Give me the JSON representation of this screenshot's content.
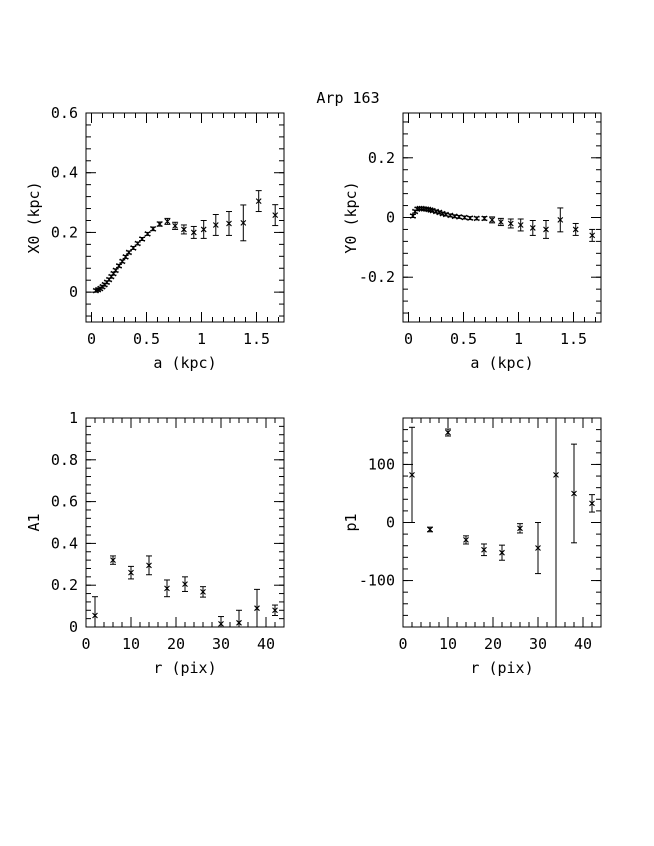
{
  "figure_title": "Arp 163",
  "chart_data": [
    {
      "type": "scatter",
      "panel": "top-left",
      "xlabel": "a (kpc)",
      "ylabel": "X0 (kpc)",
      "xlim": [
        -0.05,
        1.75
      ],
      "ylim": [
        -0.1,
        0.6
      ],
      "xticks": [
        0,
        0.5,
        1,
        1.5
      ],
      "xtick_labels": [
        "0",
        "0.5",
        "1",
        "1.5"
      ],
      "yticks": [
        0,
        0.2,
        0.4,
        0.6
      ],
      "ytick_labels": [
        "0",
        "0.2",
        "0.4",
        "0.6"
      ],
      "points": [
        {
          "x": 0.04,
          "y": 0.005,
          "err": 0.005
        },
        {
          "x": 0.06,
          "y": 0.008,
          "err": 0.005
        },
        {
          "x": 0.08,
          "y": 0.012,
          "err": 0.005
        },
        {
          "x": 0.1,
          "y": 0.018,
          "err": 0.005
        },
        {
          "x": 0.12,
          "y": 0.025,
          "err": 0.005
        },
        {
          "x": 0.14,
          "y": 0.033,
          "err": 0.005
        },
        {
          "x": 0.16,
          "y": 0.042,
          "err": 0.005
        },
        {
          "x": 0.18,
          "y": 0.052,
          "err": 0.005
        },
        {
          "x": 0.2,
          "y": 0.062,
          "err": 0.005
        },
        {
          "x": 0.22,
          "y": 0.073,
          "err": 0.005
        },
        {
          "x": 0.25,
          "y": 0.088,
          "err": 0.005
        },
        {
          "x": 0.28,
          "y": 0.103,
          "err": 0.005
        },
        {
          "x": 0.31,
          "y": 0.118,
          "err": 0.005
        },
        {
          "x": 0.34,
          "y": 0.133,
          "err": 0.005
        },
        {
          "x": 0.38,
          "y": 0.148,
          "err": 0.005
        },
        {
          "x": 0.42,
          "y": 0.163,
          "err": 0.005
        },
        {
          "x": 0.46,
          "y": 0.178,
          "err": 0.005
        },
        {
          "x": 0.51,
          "y": 0.195,
          "err": 0.005
        },
        {
          "x": 0.56,
          "y": 0.212,
          "err": 0.006
        },
        {
          "x": 0.62,
          "y": 0.228,
          "err": 0.007
        },
        {
          "x": 0.69,
          "y": 0.237,
          "err": 0.01
        },
        {
          "x": 0.76,
          "y": 0.222,
          "err": 0.012
        },
        {
          "x": 0.84,
          "y": 0.21,
          "err": 0.015
        },
        {
          "x": 0.93,
          "y": 0.2,
          "err": 0.02
        },
        {
          "x": 1.02,
          "y": 0.21,
          "err": 0.03
        },
        {
          "x": 1.13,
          "y": 0.225,
          "err": 0.035
        },
        {
          "x": 1.25,
          "y": 0.23,
          "err": 0.04
        },
        {
          "x": 1.38,
          "y": 0.232,
          "err": 0.06
        },
        {
          "x": 1.52,
          "y": 0.305,
          "err": 0.035
        },
        {
          "x": 1.67,
          "y": 0.258,
          "err": 0.035
        }
      ]
    },
    {
      "type": "scatter",
      "panel": "top-right",
      "xlabel": "a (kpc)",
      "ylabel": "Y0 (kpc)",
      "xlim": [
        -0.05,
        1.75
      ],
      "ylim": [
        -0.35,
        0.35
      ],
      "xticks": [
        0,
        0.5,
        1,
        1.5
      ],
      "xtick_labels": [
        "0",
        "0.5",
        "1",
        "1.5"
      ],
      "yticks": [
        -0.2,
        0,
        0.2
      ],
      "ytick_labels": [
        "-0.2",
        "0",
        "0.2"
      ],
      "points": [
        {
          "x": 0.04,
          "y": 0.005,
          "err": 0.005
        },
        {
          "x": 0.06,
          "y": 0.02,
          "err": 0.005
        },
        {
          "x": 0.08,
          "y": 0.028,
          "err": 0.005
        },
        {
          "x": 0.1,
          "y": 0.03,
          "err": 0.005
        },
        {
          "x": 0.12,
          "y": 0.03,
          "err": 0.005
        },
        {
          "x": 0.14,
          "y": 0.029,
          "err": 0.005
        },
        {
          "x": 0.16,
          "y": 0.028,
          "err": 0.005
        },
        {
          "x": 0.18,
          "y": 0.027,
          "err": 0.005
        },
        {
          "x": 0.2,
          "y": 0.025,
          "err": 0.005
        },
        {
          "x": 0.22,
          "y": 0.023,
          "err": 0.005
        },
        {
          "x": 0.25,
          "y": 0.02,
          "err": 0.005
        },
        {
          "x": 0.28,
          "y": 0.017,
          "err": 0.005
        },
        {
          "x": 0.31,
          "y": 0.013,
          "err": 0.005
        },
        {
          "x": 0.34,
          "y": 0.01,
          "err": 0.005
        },
        {
          "x": 0.38,
          "y": 0.007,
          "err": 0.005
        },
        {
          "x": 0.42,
          "y": 0.004,
          "err": 0.005
        },
        {
          "x": 0.46,
          "y": 0.002,
          "err": 0.005
        },
        {
          "x": 0.51,
          "y": 0.0,
          "err": 0.005
        },
        {
          "x": 0.56,
          "y": -0.002,
          "err": 0.005
        },
        {
          "x": 0.62,
          "y": -0.003,
          "err": 0.005
        },
        {
          "x": 0.69,
          "y": -0.003,
          "err": 0.006
        },
        {
          "x": 0.76,
          "y": -0.008,
          "err": 0.01
        },
        {
          "x": 0.84,
          "y": -0.015,
          "err": 0.012
        },
        {
          "x": 0.93,
          "y": -0.02,
          "err": 0.015
        },
        {
          "x": 1.02,
          "y": -0.025,
          "err": 0.02
        },
        {
          "x": 1.13,
          "y": -0.035,
          "err": 0.025
        },
        {
          "x": 1.25,
          "y": -0.04,
          "err": 0.03
        },
        {
          "x": 1.38,
          "y": -0.008,
          "err": 0.04
        },
        {
          "x": 1.52,
          "y": -0.04,
          "err": 0.02
        },
        {
          "x": 1.67,
          "y": -0.06,
          "err": 0.02
        }
      ]
    },
    {
      "type": "scatter",
      "panel": "bottom-left",
      "xlabel": "r (pix)",
      "ylabel": "A1",
      "xlim": [
        0,
        44
      ],
      "ylim": [
        0,
        1
      ],
      "xticks": [
        0,
        10,
        20,
        30,
        40
      ],
      "xtick_labels": [
        "0",
        "10",
        "20",
        "30",
        "40"
      ],
      "yticks": [
        0,
        0.2,
        0.4,
        0.6,
        0.8,
        1
      ],
      "ytick_labels": [
        "0",
        "0.2",
        "0.4",
        "0.6",
        "0.8",
        "1"
      ],
      "points": [
        {
          "x": 2,
          "y": 0.055,
          "err": 0.09
        },
        {
          "x": 6,
          "y": 0.32,
          "err": 0.02
        },
        {
          "x": 10,
          "y": 0.26,
          "err": 0.03
        },
        {
          "x": 14,
          "y": 0.295,
          "err": 0.045
        },
        {
          "x": 18,
          "y": 0.185,
          "err": 0.04
        },
        {
          "x": 22,
          "y": 0.205,
          "err": 0.035
        },
        {
          "x": 26,
          "y": 0.168,
          "err": 0.025
        },
        {
          "x": 30,
          "y": 0.015,
          "err": 0.035
        },
        {
          "x": 34,
          "y": 0.02,
          "err": 0.06
        },
        {
          "x": 38,
          "y": 0.09,
          "err": 0.09
        },
        {
          "x": 42,
          "y": 0.08,
          "err": 0.025
        }
      ]
    },
    {
      "type": "scatter",
      "panel": "bottom-right",
      "xlabel": "r (pix)",
      "ylabel": "p1",
      "xlim": [
        0,
        44
      ],
      "ylim": [
        -180,
        180
      ],
      "xticks": [
        0,
        10,
        20,
        30,
        40
      ],
      "xtick_labels": [
        "0",
        "10",
        "20",
        "30",
        "40"
      ],
      "yticks": [
        -100,
        0,
        100
      ],
      "ytick_labels": [
        "-100",
        "0",
        "100"
      ],
      "points": [
        {
          "x": 2,
          "y": 82,
          "err": 82
        },
        {
          "x": 6,
          "y": -12,
          "err": 4
        },
        {
          "x": 10,
          "y": 155,
          "err": 6
        },
        {
          "x": 14,
          "y": -30,
          "err": 7
        },
        {
          "x": 18,
          "y": -47,
          "err": 10
        },
        {
          "x": 22,
          "y": -52,
          "err": 13
        },
        {
          "x": 26,
          "y": -10,
          "err": 8
        },
        {
          "x": 30,
          "y": -44,
          "err": 44
        },
        {
          "x": 34,
          "y": 82,
          "err": 300
        },
        {
          "x": 38,
          "y": 50,
          "err": 85
        },
        {
          "x": 42,
          "y": 33,
          "err": 15
        }
      ]
    }
  ]
}
